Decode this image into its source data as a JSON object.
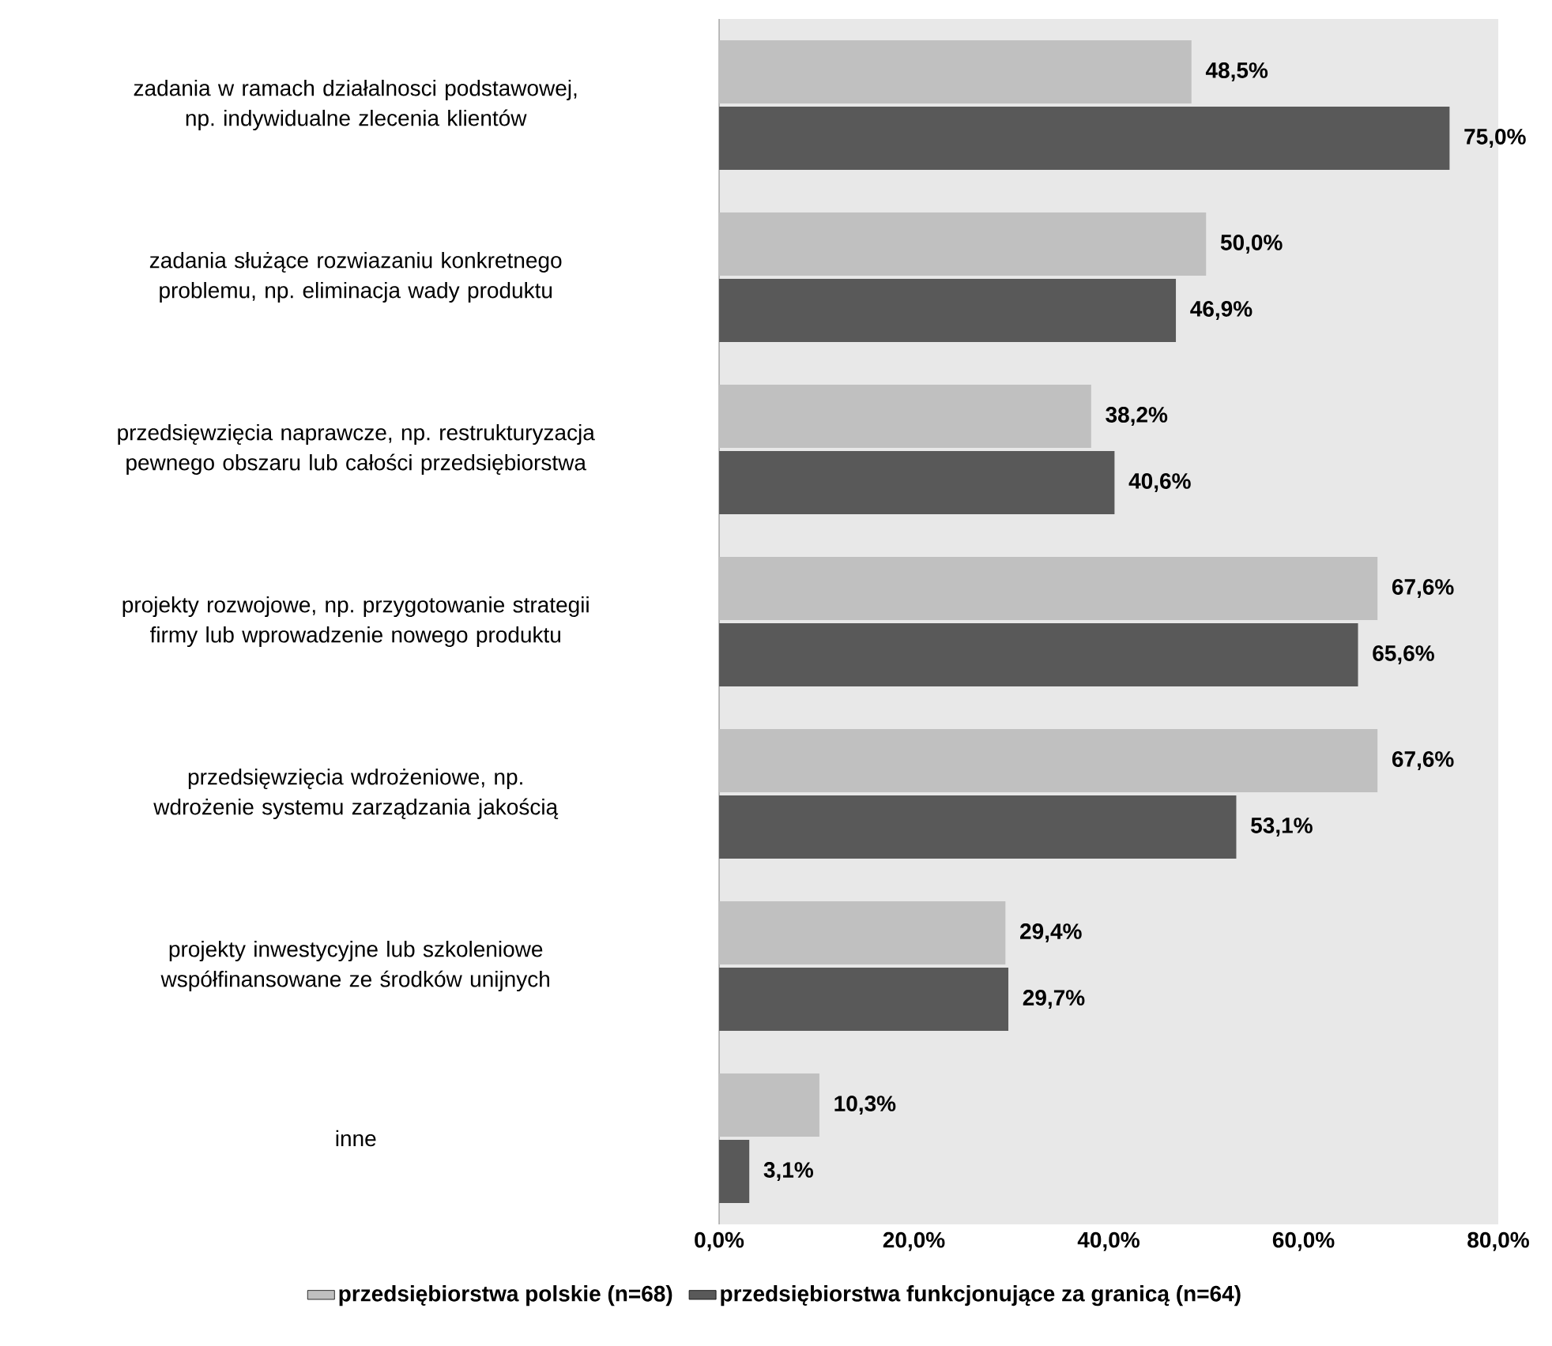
{
  "chart_data": {
    "type": "bar",
    "orientation": "horizontal",
    "categories": [
      "zadania w ramach działalnosci podstawowej, np. indywidualne zlecenia klientów",
      "zadania służące rozwiazaniu konkretnego problemu, np. eliminacja wady produktu",
      "przedsięwzięcia naprawcze, np. restrukturyzacja pewnego obszaru lub całości przedsiębiorstwa",
      "projekty rozwojowe, np. przygotowanie strategii firmy lub wprowadzenie nowego produktu",
      "przedsięwzięcia wdrożeniowe, np. wdrożenie systemu zarządzania jakością",
      "projekty inwestycyjne lub szkoleniowe współfinansowane ze środków unijnych",
      "inne"
    ],
    "series": [
      {
        "name": "przedsiębiorstwa polskie (n=68)",
        "color": "#c0c0c0",
        "values": [
          48.5,
          50.0,
          38.2,
          67.6,
          67.6,
          29.4,
          10.3
        ],
        "value_labels": [
          "48,5%",
          "50,0%",
          "38,2%",
          "67,6%",
          "67,6%",
          "29,4%",
          "10,3%"
        ]
      },
      {
        "name": "przedsiębiorstwa funkcjonujące za granicą (n=64)",
        "color": "#595959",
        "values": [
          75.0,
          46.9,
          40.6,
          65.6,
          53.1,
          29.7,
          3.1
        ],
        "value_labels": [
          "75,0%",
          "46,9%",
          "40,6%",
          "65,6%",
          "53,1%",
          "29,7%",
          "3,1%"
        ]
      }
    ],
    "xlim": [
      0,
      80
    ],
    "xticks": [
      {
        "value": 0,
        "label": "0,0%"
      },
      {
        "value": 20,
        "label": "20,0%"
      },
      {
        "value": 40,
        "label": "40,0%"
      },
      {
        "value": 60,
        "label": "60,0%"
      },
      {
        "value": 80,
        "label": "80,0%"
      }
    ],
    "legend": "bottom",
    "grid": false
  }
}
